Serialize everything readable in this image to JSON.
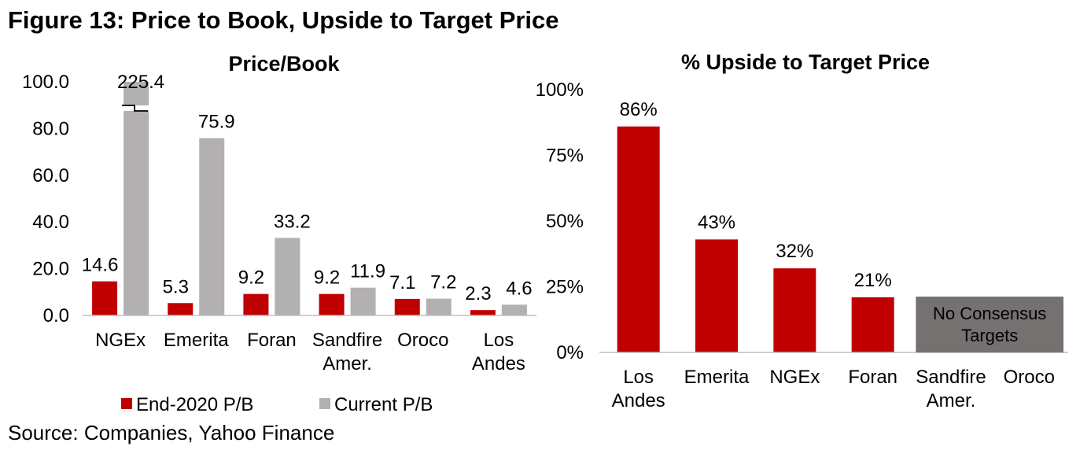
{
  "figure": {
    "title": "Figure 13: Price to Book, Upside to Target Price",
    "source": "Source: Companies, Yahoo Finance"
  },
  "colors": {
    "red": "#C00000",
    "gray": "#B2B0B0",
    "dark_gray": "#767171",
    "axis": "#BFBFBF"
  },
  "chart_data": [
    {
      "type": "bar",
      "title": "Price/Book",
      "categories": [
        [
          "NGEx"
        ],
        [
          "Emerita"
        ],
        [
          "Foran"
        ],
        [
          "Sandfire",
          "Amer."
        ],
        [
          "Oroco"
        ],
        [
          "Los",
          "Andes"
        ]
      ],
      "series": [
        {
          "name": "End-2020 P/B",
          "color": "#C00000",
          "values": [
            14.6,
            5.3,
            9.2,
            9.2,
            7.1,
            2.3
          ]
        },
        {
          "name": "Current P/B",
          "color": "#B2B0B0",
          "values": [
            225.4,
            75.9,
            33.2,
            11.9,
            7.2,
            4.6
          ]
        }
      ],
      "yticks": [
        "100.0",
        "80.0",
        "60.0",
        "40.0",
        "20.0",
        "0.0"
      ],
      "ylim": [
        0,
        100
      ],
      "axis_break": {
        "category": "NGEx",
        "series": "Current P/B",
        "note": "bar truncated at axis max"
      },
      "legend": "bottom",
      "xlabel": "",
      "ylabel": ""
    },
    {
      "type": "bar",
      "title": "% Upside to Target Price",
      "categories": [
        [
          "Los",
          "Andes"
        ],
        [
          "Emerita"
        ],
        [
          "NGEx"
        ],
        [
          "Foran"
        ],
        [
          "Sandfire",
          "Amer."
        ],
        [
          "Oroco"
        ]
      ],
      "values": [
        86,
        43,
        32,
        21,
        null,
        null
      ],
      "value_labels": [
        "86%",
        "43%",
        "32%",
        "21%",
        "",
        ""
      ],
      "yticks": [
        "100%",
        "75%",
        "50%",
        "25%",
        "0%"
      ],
      "ylim": [
        0,
        100
      ],
      "annotation": {
        "text_lines": [
          "No Consensus",
          "Targets"
        ],
        "covers": [
          "Sandfire Amer.",
          "Oroco"
        ]
      },
      "xlabel": "",
      "ylabel": ""
    }
  ]
}
